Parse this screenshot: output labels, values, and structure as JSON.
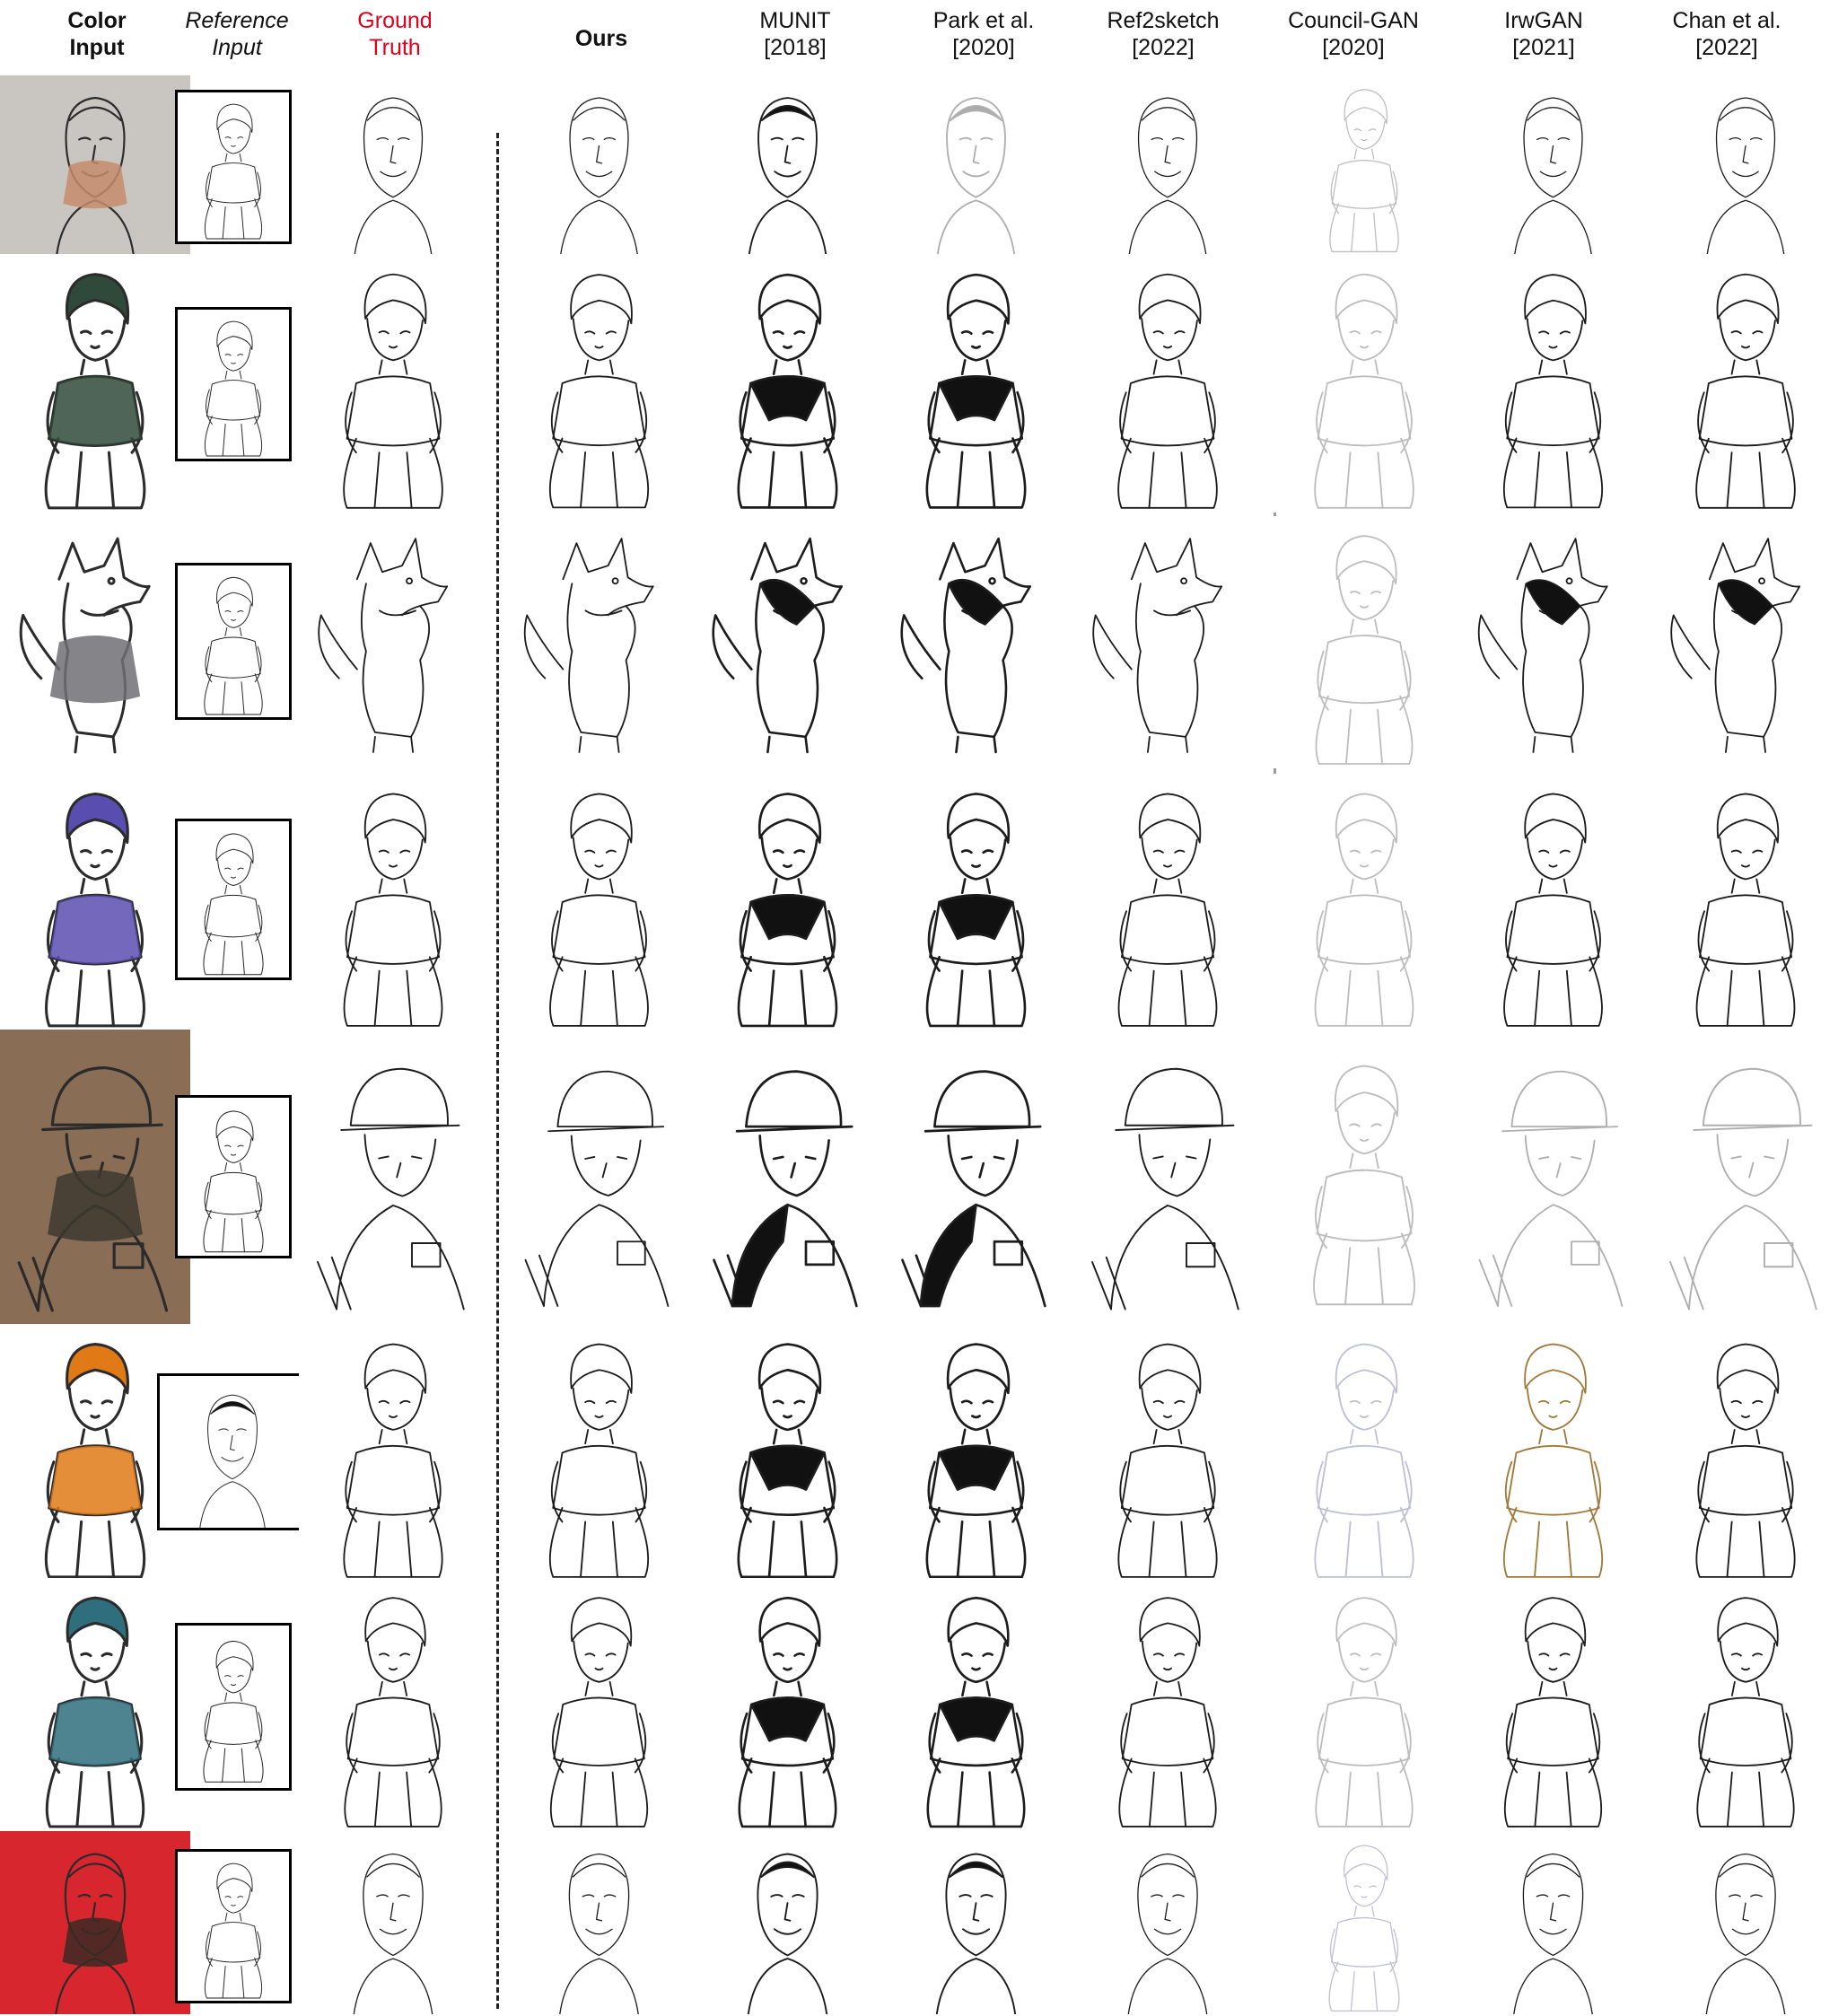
{
  "headers": [
    {
      "lines": [
        "Color",
        "Input"
      ],
      "style": "bold"
    },
    {
      "lines": [
        "Reference",
        "Input"
      ],
      "style": "ital"
    },
    {
      "lines": [
        "Ground",
        "Truth"
      ],
      "style": "red"
    },
    {
      "lines": [
        "Ours"
      ],
      "style": "bold"
    },
    {
      "lines": [
        "MUNIT",
        "[2018]"
      ],
      "style": ""
    },
    {
      "lines": [
        "Park et al.",
        "[2020]"
      ],
      "style": ""
    },
    {
      "lines": [
        "Ref2sketch",
        "[2022]"
      ],
      "style": ""
    },
    {
      "lines": [
        "Council-GAN",
        "[2020]"
      ],
      "style": ""
    },
    {
      "lines": [
        "IrwGAN",
        "[2021]"
      ],
      "style": ""
    },
    {
      "lines": [
        "Chan et al.",
        "[2022]"
      ],
      "style": ""
    }
  ],
  "rows": [
    {
      "subject": "portrait-man",
      "color_bg": "#c9c6c2",
      "accent": "#c58b6b"
    },
    {
      "subject": "anime-boy-green-coat",
      "color_bg": "#ffffff",
      "accent": "#2f4a3a"
    },
    {
      "subject": "husky-dog",
      "color_bg": "#ffffff",
      "accent": "#6f6f74"
    },
    {
      "subject": "anime-girl-purple-robe",
      "color_bg": "#ffffff",
      "accent": "#5a4db0"
    },
    {
      "subject": "soldier-helmet",
      "color_bg": "#8a6d55",
      "accent": "#3d3a30"
    },
    {
      "subject": "anime-girl-orange-cap",
      "color_bg": "#ffffff",
      "accent": "#e07a16"
    },
    {
      "subject": "anime-girl-brown-hair",
      "color_bg": "#ffffff",
      "accent": "#2f6f7d"
    },
    {
      "subject": "boy-baseball-uniform",
      "color_bg": "#d8262e",
      "accent": "#3b2a22"
    }
  ]
}
